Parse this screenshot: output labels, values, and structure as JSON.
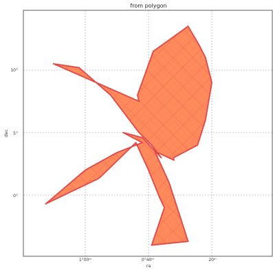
{
  "chart_data": {
    "type": "area",
    "title": "from polygon",
    "xlabel": "ra",
    "ylabel": "dec",
    "x_ticks": [
      "1°00ᵐ",
      "0°40ᵐ",
      "20ᵐ"
    ],
    "y_ticks": [
      "10°",
      "5°",
      "0°"
    ],
    "grid": true,
    "colors": {
      "fill": "#ff8a5c",
      "edge": "#e04848",
      "hatch": "#e85a4a"
    },
    "series": [
      {
        "values": [
          {
            "x": 70,
            "y": 10.5
          },
          {
            "x": 62,
            "y": 10.2
          },
          {
            "x": 52,
            "y": 8.0
          },
          {
            "x": 43,
            "y": 5.0
          },
          {
            "x": 39,
            "y": 4.0
          },
          {
            "x": 36,
            "y": 3.0
          },
          {
            "x": 42,
            "y": 4.6
          },
          {
            "x": 48,
            "y": 5.0
          },
          {
            "x": 42,
            "y": 4.2
          },
          {
            "x": 50,
            "y": 3.4
          },
          {
            "x": 60,
            "y": 2.0
          },
          {
            "x": 72.5,
            "y": -0.7
          },
          {
            "x": 56,
            "y": 1.3
          },
          {
            "x": 55,
            "y": 1.5
          },
          {
            "x": 44,
            "y": 4.2
          },
          {
            "x": 40,
            "y": 2.0
          },
          {
            "x": 36.5,
            "y": -0.2
          },
          {
            "x": 35,
            "y": -1.0
          },
          {
            "x": 39,
            "y": -4.0
          },
          {
            "x": 27.5,
            "y": -3.7
          },
          {
            "x": 33.5,
            "y": 1.0
          },
          {
            "x": 38,
            "y": 3.5
          },
          {
            "x": 32,
            "y": 2.8
          },
          {
            "x": 32,
            "y": 3.0
          },
          {
            "x": 24.5,
            "y": 4.0
          },
          {
            "x": 22,
            "y": 6.0
          },
          {
            "x": 20,
            "y": 9.0
          },
          {
            "x": 22,
            "y": 11.0
          },
          {
            "x": 24,
            "y": 12.0
          },
          {
            "x": 27.5,
            "y": 13.5
          },
          {
            "x": 38.5,
            "y": 11.5
          },
          {
            "x": 43.5,
            "y": 8.0
          },
          {
            "x": 43,
            "y": 7.5
          }
        ]
      }
    ]
  }
}
